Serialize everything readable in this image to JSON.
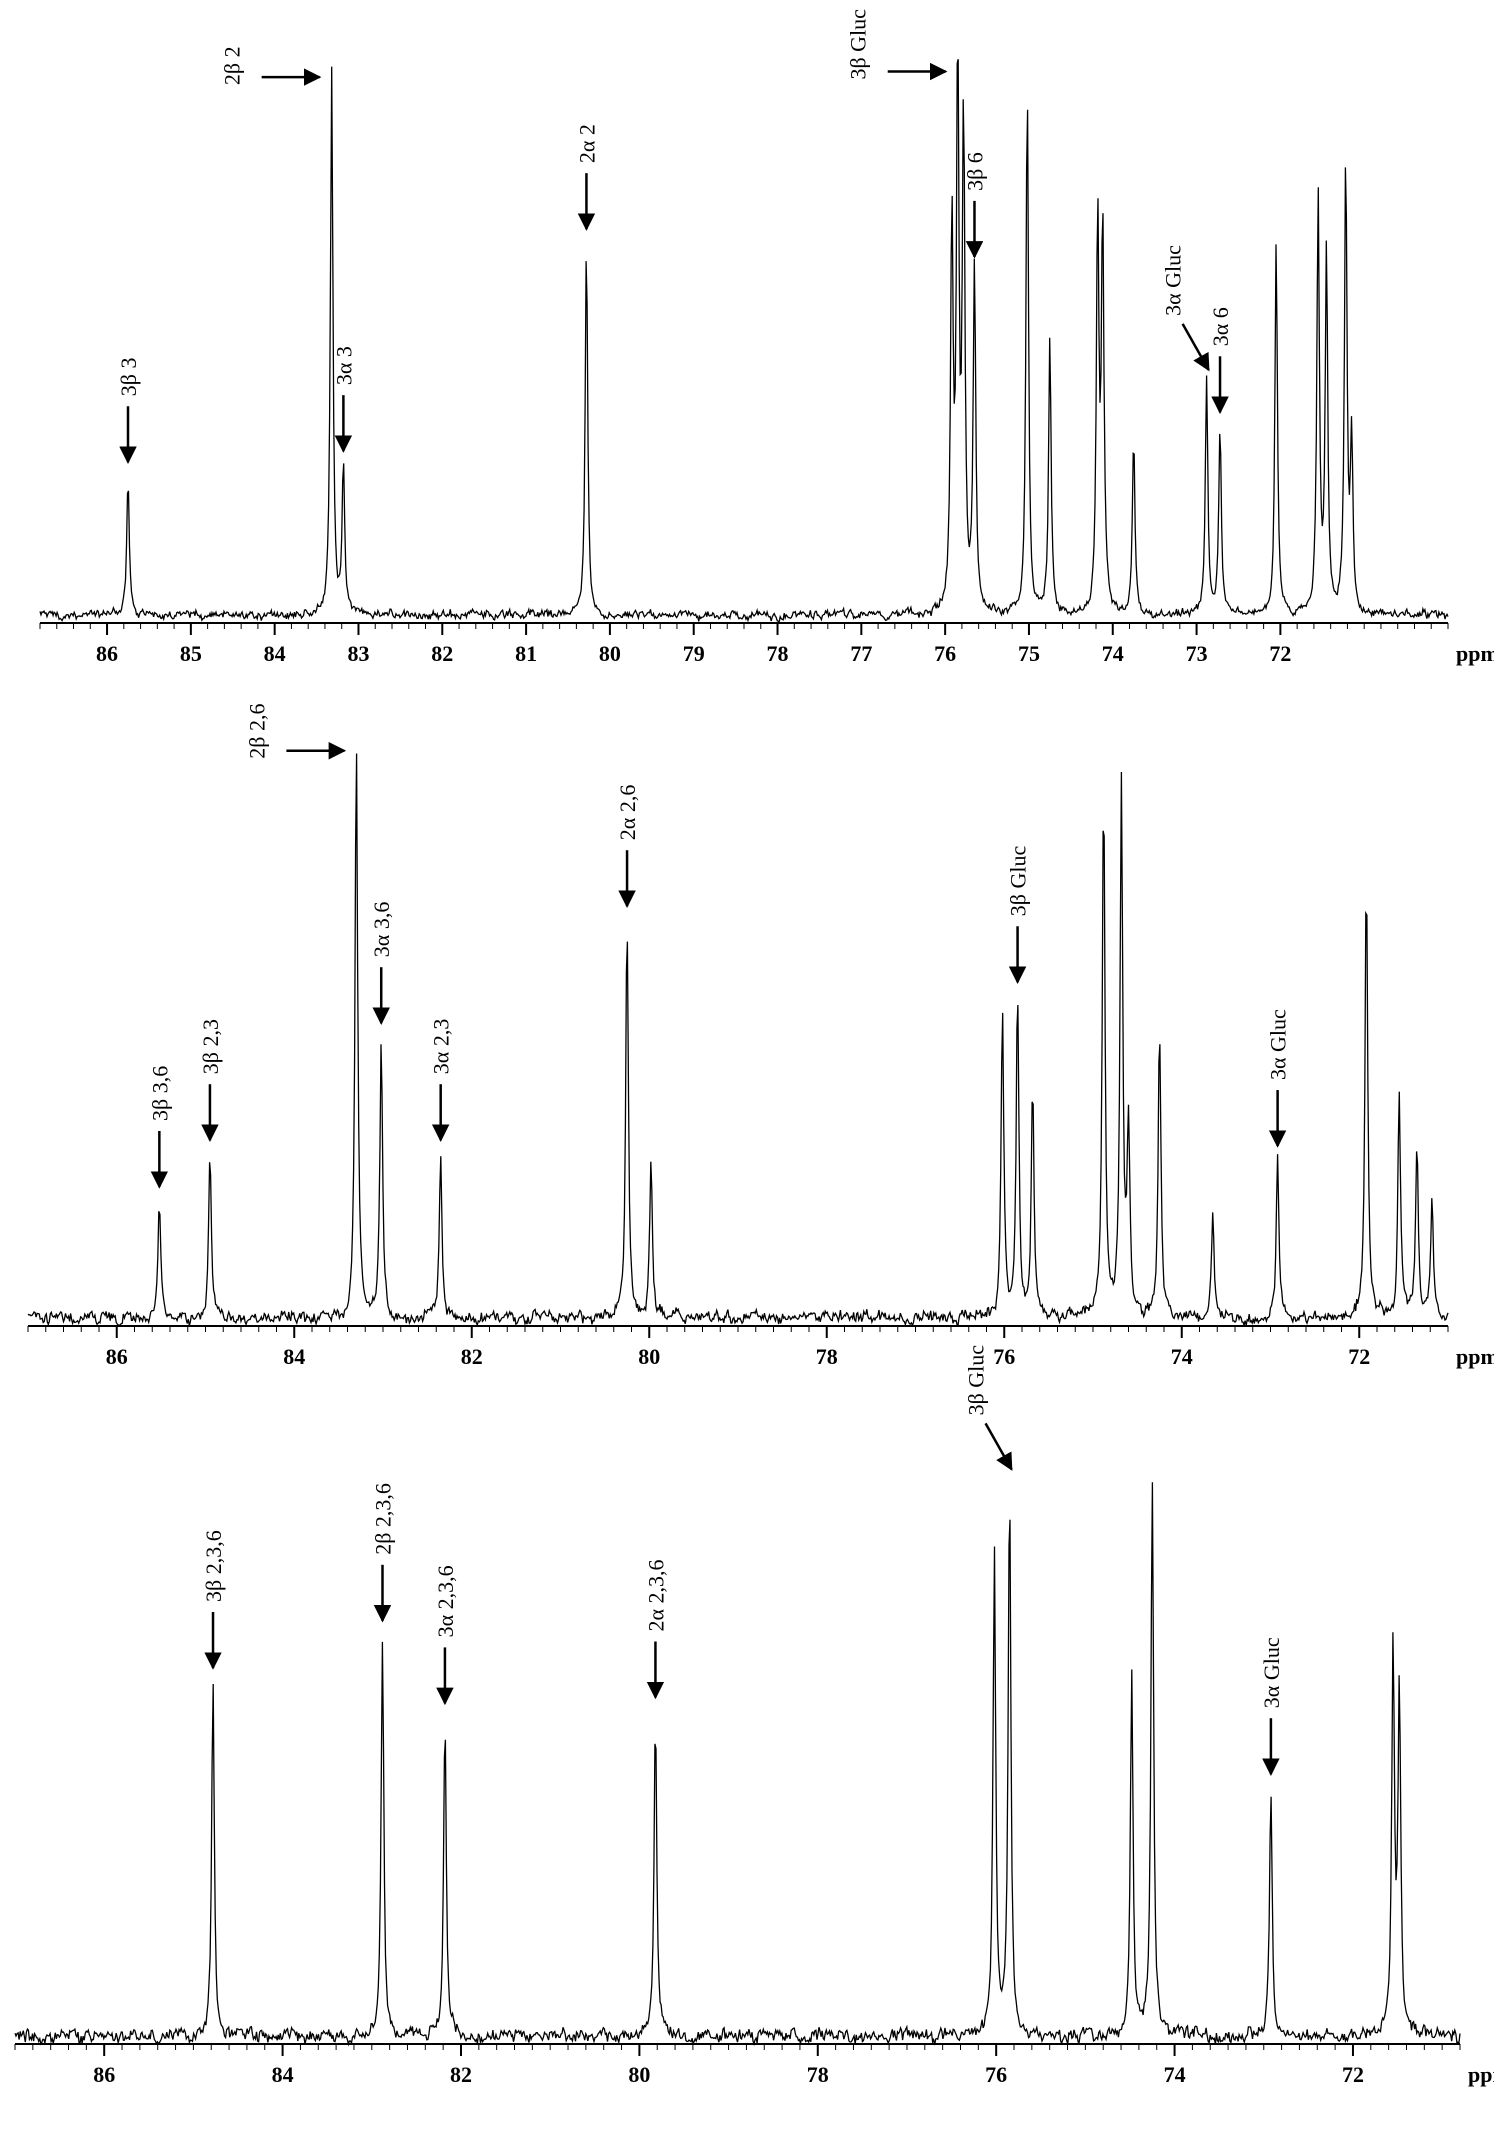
{
  "chart_data": [
    {
      "type": "line",
      "unit": "ppm",
      "xlim": [
        86.8,
        70.0
      ],
      "ticks": [
        86,
        85,
        84,
        83,
        82,
        81,
        80,
        79,
        78,
        77,
        76,
        75,
        74,
        73,
        72
      ],
      "tick_labels": [
        "86",
        "85",
        "84",
        "83",
        "82",
        "81",
        "80",
        "79",
        "78",
        "77",
        "76",
        "75",
        "74",
        "73",
        "72"
      ],
      "minor_step": 0.2,
      "series": [
        {
          "peaks": [
            {
              "x": 85.75,
              "h": 0.25
            },
            {
              "x": 83.32,
              "h": 0.98
            },
            {
              "x": 83.18,
              "h": 0.27
            },
            {
              "x": 80.28,
              "h": 0.67
            },
            {
              "x": 75.92,
              "h": 0.7
            },
            {
              "x": 75.85,
              "h": 0.99
            },
            {
              "x": 75.78,
              "h": 0.88
            },
            {
              "x": 75.65,
              "h": 0.62
            },
            {
              "x": 75.02,
              "h": 0.95
            },
            {
              "x": 74.75,
              "h": 0.5
            },
            {
              "x": 74.18,
              "h": 0.72
            },
            {
              "x": 74.12,
              "h": 0.7
            },
            {
              "x": 73.75,
              "h": 0.32
            },
            {
              "x": 72.88,
              "h": 0.42
            },
            {
              "x": 72.72,
              "h": 0.34
            },
            {
              "x": 72.05,
              "h": 0.68
            },
            {
              "x": 71.55,
              "h": 0.75
            },
            {
              "x": 71.45,
              "h": 0.65
            },
            {
              "x": 71.22,
              "h": 0.82
            },
            {
              "x": 71.15,
              "h": 0.3
            }
          ]
        }
      ],
      "annotations": [
        {
          "text": "3β 3",
          "x": 85.75,
          "arrow": "down"
        },
        {
          "text": "2β 2",
          "x": 83.32,
          "arrow": "right"
        },
        {
          "text": "3α 3",
          "x": 83.18,
          "arrow": "down"
        },
        {
          "text": "2α 2",
          "x": 80.28,
          "arrow": "down"
        },
        {
          "text": "3β Gluc",
          "x": 75.85,
          "arrow": "right"
        },
        {
          "text": "3β 6",
          "x": 75.65,
          "arrow": "down"
        },
        {
          "text": "3α Gluc",
          "x": 72.88,
          "arrow": "diag"
        },
        {
          "text": "3α 6",
          "x": 72.72,
          "arrow": "down"
        }
      ]
    },
    {
      "type": "line",
      "unit": "ppm",
      "xlim": [
        87.0,
        71.0
      ],
      "ticks": [
        86,
        84,
        82,
        80,
        78,
        76,
        74,
        72
      ],
      "tick_labels": [
        "86",
        "84",
        "82",
        "80",
        "78",
        "76",
        "74",
        "72"
      ],
      "minor_step": 0.2,
      "series": [
        {
          "peaks": [
            {
              "x": 85.52,
              "h": 0.2
            },
            {
              "x": 84.95,
              "h": 0.28
            },
            {
              "x": 83.3,
              "h": 0.98
            },
            {
              "x": 83.02,
              "h": 0.48
            },
            {
              "x": 82.35,
              "h": 0.28
            },
            {
              "x": 80.25,
              "h": 0.68
            },
            {
              "x": 79.98,
              "h": 0.26
            },
            {
              "x": 76.02,
              "h": 0.52
            },
            {
              "x": 75.85,
              "h": 0.55
            },
            {
              "x": 75.68,
              "h": 0.4
            },
            {
              "x": 74.88,
              "h": 0.9
            },
            {
              "x": 74.68,
              "h": 0.92
            },
            {
              "x": 74.6,
              "h": 0.32
            },
            {
              "x": 74.25,
              "h": 0.5
            },
            {
              "x": 73.65,
              "h": 0.18
            },
            {
              "x": 72.92,
              "h": 0.27
            },
            {
              "x": 71.92,
              "h": 0.75
            },
            {
              "x": 71.55,
              "h": 0.38
            },
            {
              "x": 71.35,
              "h": 0.3
            },
            {
              "x": 71.18,
              "h": 0.2
            }
          ]
        }
      ],
      "annotations": [
        {
          "text": "3β 3,6",
          "x": 85.52,
          "arrow": "down"
        },
        {
          "text": "3β 2,3",
          "x": 84.95,
          "arrow": "down"
        },
        {
          "text": "2β 2,6",
          "x": 83.3,
          "arrow": "right"
        },
        {
          "text": "3α 3,6",
          "x": 83.02,
          "arrow": "down"
        },
        {
          "text": "3α 2,3",
          "x": 82.35,
          "arrow": "down"
        },
        {
          "text": "2α 2,6",
          "x": 80.25,
          "arrow": "down"
        },
        {
          "text": "3β Gluc",
          "x": 75.85,
          "arrow": "down"
        },
        {
          "text": "3α Gluc",
          "x": 72.92,
          "arrow": "down"
        }
      ]
    },
    {
      "type": "line",
      "unit": "ppm",
      "xlim": [
        87.0,
        70.8
      ],
      "ticks": [
        86,
        84,
        82,
        80,
        78,
        76,
        74,
        72
      ],
      "tick_labels": [
        "86",
        "84",
        "82",
        "80",
        "78",
        "76",
        "74",
        "72"
      ],
      "minor_step": 0.2,
      "series": [
        {
          "peaks": [
            {
              "x": 84.78,
              "h": 0.6
            },
            {
              "x": 82.88,
              "h": 0.68
            },
            {
              "x": 82.18,
              "h": 0.54
            },
            {
              "x": 79.82,
              "h": 0.55
            },
            {
              "x": 76.02,
              "h": 0.82
            },
            {
              "x": 75.85,
              "h": 0.94
            },
            {
              "x": 74.48,
              "h": 0.62
            },
            {
              "x": 74.25,
              "h": 0.95
            },
            {
              "x": 72.92,
              "h": 0.42
            },
            {
              "x": 71.55,
              "h": 0.66
            },
            {
              "x": 71.48,
              "h": 0.58
            }
          ]
        }
      ],
      "annotations": [
        {
          "text": "3β 2,3,6",
          "x": 84.78,
          "arrow": "down"
        },
        {
          "text": "2β 2,3,6",
          "x": 82.88,
          "arrow": "down"
        },
        {
          "text": "3α 2,3,6",
          "x": 82.18,
          "arrow": "down"
        },
        {
          "text": "2α 2,3,6",
          "x": 79.82,
          "arrow": "down"
        },
        {
          "text": "3β Gluc",
          "x": 75.85,
          "arrow": "diag"
        },
        {
          "text": "3α Gluc",
          "x": 72.92,
          "arrow": "down"
        }
      ]
    }
  ]
}
